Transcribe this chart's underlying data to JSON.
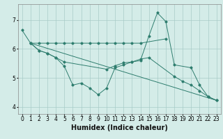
{
  "xlabel": "Humidex (Indice chaleur)",
  "bg_color": "#d4ece8",
  "grid_color": "#a8ccc8",
  "line_color": "#2e7d6e",
  "xlim": [
    -0.5,
    23.5
  ],
  "ylim": [
    3.75,
    7.55
  ],
  "yticks": [
    4,
    5,
    6,
    7
  ],
  "xticks": [
    0,
    1,
    2,
    3,
    4,
    5,
    6,
    7,
    8,
    9,
    10,
    11,
    12,
    13,
    14,
    15,
    16,
    17,
    18,
    19,
    20,
    21,
    22,
    23
  ],
  "line1_x": [
    0,
    1,
    2,
    3,
    4,
    5,
    6,
    7,
    8,
    9,
    10,
    11,
    12,
    13,
    14,
    17
  ],
  "line1_y": [
    6.65,
    6.2,
    6.2,
    6.2,
    6.2,
    6.2,
    6.2,
    6.2,
    6.2,
    6.2,
    6.2,
    6.2,
    6.2,
    6.2,
    6.2,
    6.35
  ],
  "line2_x": [
    1,
    2,
    3,
    4,
    5,
    6,
    7,
    8,
    9,
    10,
    11,
    12,
    13,
    14,
    15,
    16,
    17,
    18,
    20,
    21,
    22,
    23
  ],
  "line2_y": [
    6.2,
    5.95,
    5.85,
    5.7,
    5.4,
    4.75,
    4.82,
    4.65,
    4.42,
    4.65,
    5.35,
    5.45,
    5.55,
    5.6,
    6.45,
    7.25,
    6.95,
    5.45,
    5.35,
    4.75,
    4.35,
    4.22
  ],
  "line3_x": [
    1,
    2,
    3,
    4,
    5,
    10,
    11,
    12,
    13,
    14,
    15,
    18,
    19,
    20,
    21,
    22,
    23
  ],
  "line3_y": [
    6.2,
    5.95,
    5.85,
    5.7,
    5.55,
    5.3,
    5.42,
    5.52,
    5.55,
    5.65,
    5.7,
    5.05,
    4.88,
    4.75,
    4.55,
    4.35,
    4.22
  ],
  "line4_x": [
    1,
    23
  ],
  "line4_y": [
    6.2,
    4.22
  ],
  "marker_size": 2.5,
  "tick_fontsize": 5.5,
  "xlabel_fontsize": 7
}
